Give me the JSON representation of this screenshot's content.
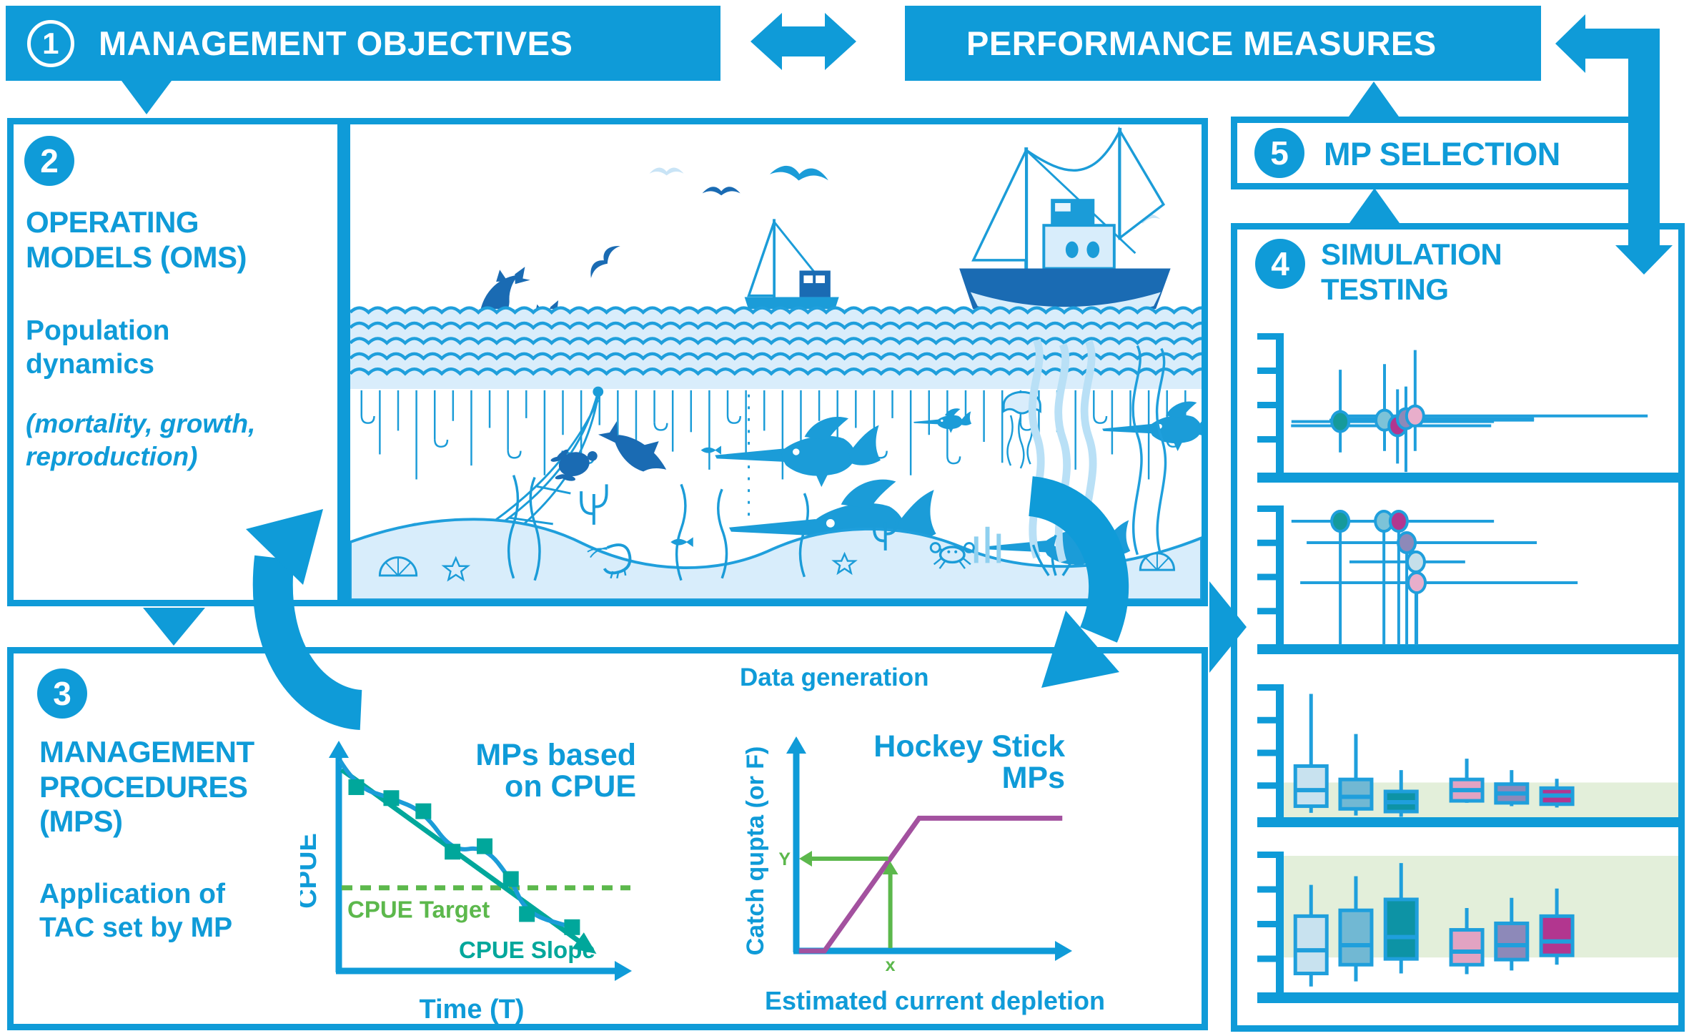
{
  "palette": {
    "blue": "#0f9bd8",
    "navy": "#1a6bb3",
    "light_blue": "#d9edfb",
    "teal": "#00a79b",
    "green": "#5cb84c",
    "purple": "#a3519f",
    "band_green": "#e3efda"
  },
  "banner": {
    "step1_num": "1",
    "step1": "MANAGEMENT OBJECTIVES",
    "step2": "PERFORMANCE MEASURES"
  },
  "boxes": {
    "om": {
      "num": "2",
      "title": "OPERATING MODELS (OMS)",
      "subtitle": "Population dynamics",
      "note": "(mortality, growth, reproduction)"
    },
    "mp": {
      "num": "3",
      "title": "MANAGEMENT PROCEDURES (MPS)",
      "subtitle": "Application of TAC set by MP"
    },
    "sim": {
      "num": "4",
      "title": "SIMULATION TESTING"
    },
    "sel": {
      "num": "5",
      "title": "MP SELECTION"
    }
  },
  "labels": {
    "data_generation": "Data generation"
  },
  "icons": [
    "fishing-boat",
    "trawler",
    "seagull",
    "diving-seabird",
    "dolphin",
    "shark",
    "sea-turtle",
    "marlin",
    "tuna",
    "small-fish",
    "jellyfish",
    "longline-hooks",
    "fishing-net",
    "wave-pattern",
    "seabed",
    "seaweed",
    "kelp",
    "coral",
    "scallop-shell",
    "starfish",
    "shrimp",
    "crab",
    "curved-cycle-arrow",
    "flow-arrow"
  ],
  "dot_colors": {
    "teal": "#159a9b",
    "lightblue": "#7cc3d8",
    "magenta": "#b2368f",
    "purple": "#8d89b9",
    "paleblue": "#c5dfea",
    "pink": "#e8aecb"
  },
  "box_colors": {
    "paleblue": "#c8e2ef",
    "midblue": "#71b8d3",
    "teal": "#0d93a5",
    "pink": "#e2a3c2",
    "purple": "#8d89b9",
    "magenta": "#b2368f"
  },
  "chart_data": [
    {
      "id": "cpue",
      "type": "line",
      "title_lines": [
        "MPs based",
        "on CPUE"
      ],
      "xlabel": "Time (T)",
      "ylabel": "CPUE",
      "grid": false,
      "xlim": [
        0,
        1
      ],
      "ylim": [
        0,
        1
      ],
      "line_start": [
        0.005,
        0.96
      ],
      "series": [
        {
          "name": "CPUE index",
          "color": "#1b9cd8",
          "marker": "square",
          "marker_color": "#00a79b",
          "points": [
            [
              0.06,
              0.84
            ],
            [
              0.18,
              0.79
            ],
            [
              0.29,
              0.73
            ],
            [
              0.39,
              0.545
            ],
            [
              0.5,
              0.57
            ],
            [
              0.59,
              0.42
            ],
            [
              0.645,
              0.26
            ],
            [
              0.8,
              0.2
            ]
          ]
        },
        {
          "name": "CPUE Slope",
          "style": "arrow-line",
          "color": "#00a79b",
          "from": [
            0.01,
            0.92
          ],
          "to": [
            0.84,
            0.12
          ]
        }
      ],
      "target": {
        "label": "CPUE Target",
        "y": 0.38,
        "style": "dashed",
        "color": "#5cb84c"
      },
      "slope_label": "CPUE Slope"
    },
    {
      "id": "hockey",
      "type": "line",
      "title_lines": [
        "Hockey Stick",
        "MPs"
      ],
      "xlabel": "Estimated current depletion",
      "ylabel": "Catch qupta (or F)",
      "line_color": "#a3519f",
      "points": [
        [
          0.01,
          0.0
        ],
        [
          0.105,
          0.0
        ],
        [
          0.457,
          0.64
        ],
        [
          0.99,
          0.64
        ]
      ],
      "marker": {
        "x": 0.35,
        "y": 0.445,
        "x_label": "x",
        "y_label": "Y",
        "color": "#5cb84c"
      }
    },
    {
      "id": "sim1",
      "type": "scatter-cross",
      "points": [
        {
          "color": "teal",
          "x": 0.152,
          "y": 0.4,
          "h": [
            0.03,
            0.536
          ],
          "v": [
            0.18,
            0.77
          ]
        },
        {
          "color": "lightblue",
          "x": 0.2625,
          "y": 0.41,
          "h": [
            0.125,
            0.636
          ],
          "v": [
            0.19,
            0.81
          ]
        },
        {
          "color": "magenta",
          "x": 0.295,
          "y": 0.37,
          "h": [
            0.029,
            0.529
          ],
          "v": [
            0.1,
            0.63
          ]
        },
        {
          "color": "purple",
          "x": 0.316,
          "y": 0.42,
          "h": [
            0.154,
            0.636
          ],
          "v": [
            0.04,
            0.65
          ]
        },
        {
          "color": "pink",
          "x": 0.339,
          "y": 0.44,
          "h": [
            0.154,
            0.92
          ],
          "v": [
            0.19,
            0.91
          ]
        }
      ]
    },
    {
      "id": "sim2",
      "type": "scatter-ladder",
      "drop_to": 0.03,
      "rows": [
        {
          "y": 0.918,
          "line": [
            0.03,
            0.536
          ],
          "dots": [
            {
              "color": "teal",
              "x": 0.152
            },
            {
              "color": "lightblue",
              "x": 0.261
            },
            {
              "color": "magenta",
              "x": 0.298
            }
          ]
        },
        {
          "y": 0.764,
          "line": [
            0.068,
            0.643
          ],
          "dots": [
            {
              "color": "purple",
              "x": 0.318
            }
          ]
        },
        {
          "y": 0.626,
          "line": [
            0.175,
            0.464
          ],
          "dots": [
            {
              "color": "paleblue",
              "x": 0.341
            }
          ]
        },
        {
          "y": 0.477,
          "line": [
            0.052,
            0.745
          ],
          "dots": [
            {
              "color": "pink",
              "x": 0.343
            }
          ]
        }
      ]
    },
    {
      "id": "sim3",
      "type": "box",
      "band": [
        0.016,
        0.297
      ],
      "boxes": [
        {
          "color": "paleblue",
          "x": 0.079,
          "q3": 0.42,
          "q1": 0.12,
          "med": 0.24,
          "hi": 0.96,
          "lo": 0.07
        },
        {
          "color": "midblue",
          "x": 0.191,
          "q3": 0.32,
          "q1": 0.1,
          "med": 0.19,
          "hi": 0.66,
          "lo": 0.05
        },
        {
          "color": "teal",
          "x": 0.304,
          "q3": 0.23,
          "q1": 0.08,
          "med": 0.15,
          "hi": 0.39,
          "lo": 0.04
        },
        {
          "color": "pink",
          "x": 0.468,
          "q3": 0.32,
          "q1": 0.16,
          "med": 0.24,
          "hi": 0.475,
          "lo": 0.145
        },
        {
          "color": "purple",
          "x": 0.58,
          "q3": 0.285,
          "q1": 0.145,
          "med": 0.215,
          "hi": 0.39,
          "lo": 0.12
        },
        {
          "color": "magenta",
          "x": 0.693,
          "q3": 0.255,
          "q1": 0.135,
          "med": 0.2,
          "hi": 0.325,
          "lo": 0.11
        }
      ]
    },
    {
      "id": "sim4",
      "type": "box",
      "band": [
        0.282,
        1.0
      ],
      "boxes": [
        {
          "color": "paleblue",
          "x": 0.079,
          "q3": 0.574,
          "q1": 0.169,
          "med": 0.333,
          "hi": 0.795,
          "lo": 0.077
        },
        {
          "color": "midblue",
          "x": 0.191,
          "q3": 0.615,
          "q1": 0.231,
          "med": 0.369,
          "hi": 0.856,
          "lo": 0.113
        },
        {
          "color": "teal",
          "x": 0.304,
          "q3": 0.692,
          "q1": 0.272,
          "med": 0.426,
          "hi": 0.949,
          "lo": 0.169
        },
        {
          "color": "pink",
          "x": 0.468,
          "q3": 0.477,
          "q1": 0.231,
          "med": 0.323,
          "hi": 0.631,
          "lo": 0.164
        },
        {
          "color": "purple",
          "x": 0.58,
          "q3": 0.523,
          "q1": 0.267,
          "med": 0.369,
          "hi": 0.703,
          "lo": 0.19
        },
        {
          "color": "magenta",
          "x": 0.693,
          "q3": 0.574,
          "q1": 0.297,
          "med": 0.395,
          "hi": 0.769,
          "lo": 0.231
        }
      ]
    }
  ]
}
